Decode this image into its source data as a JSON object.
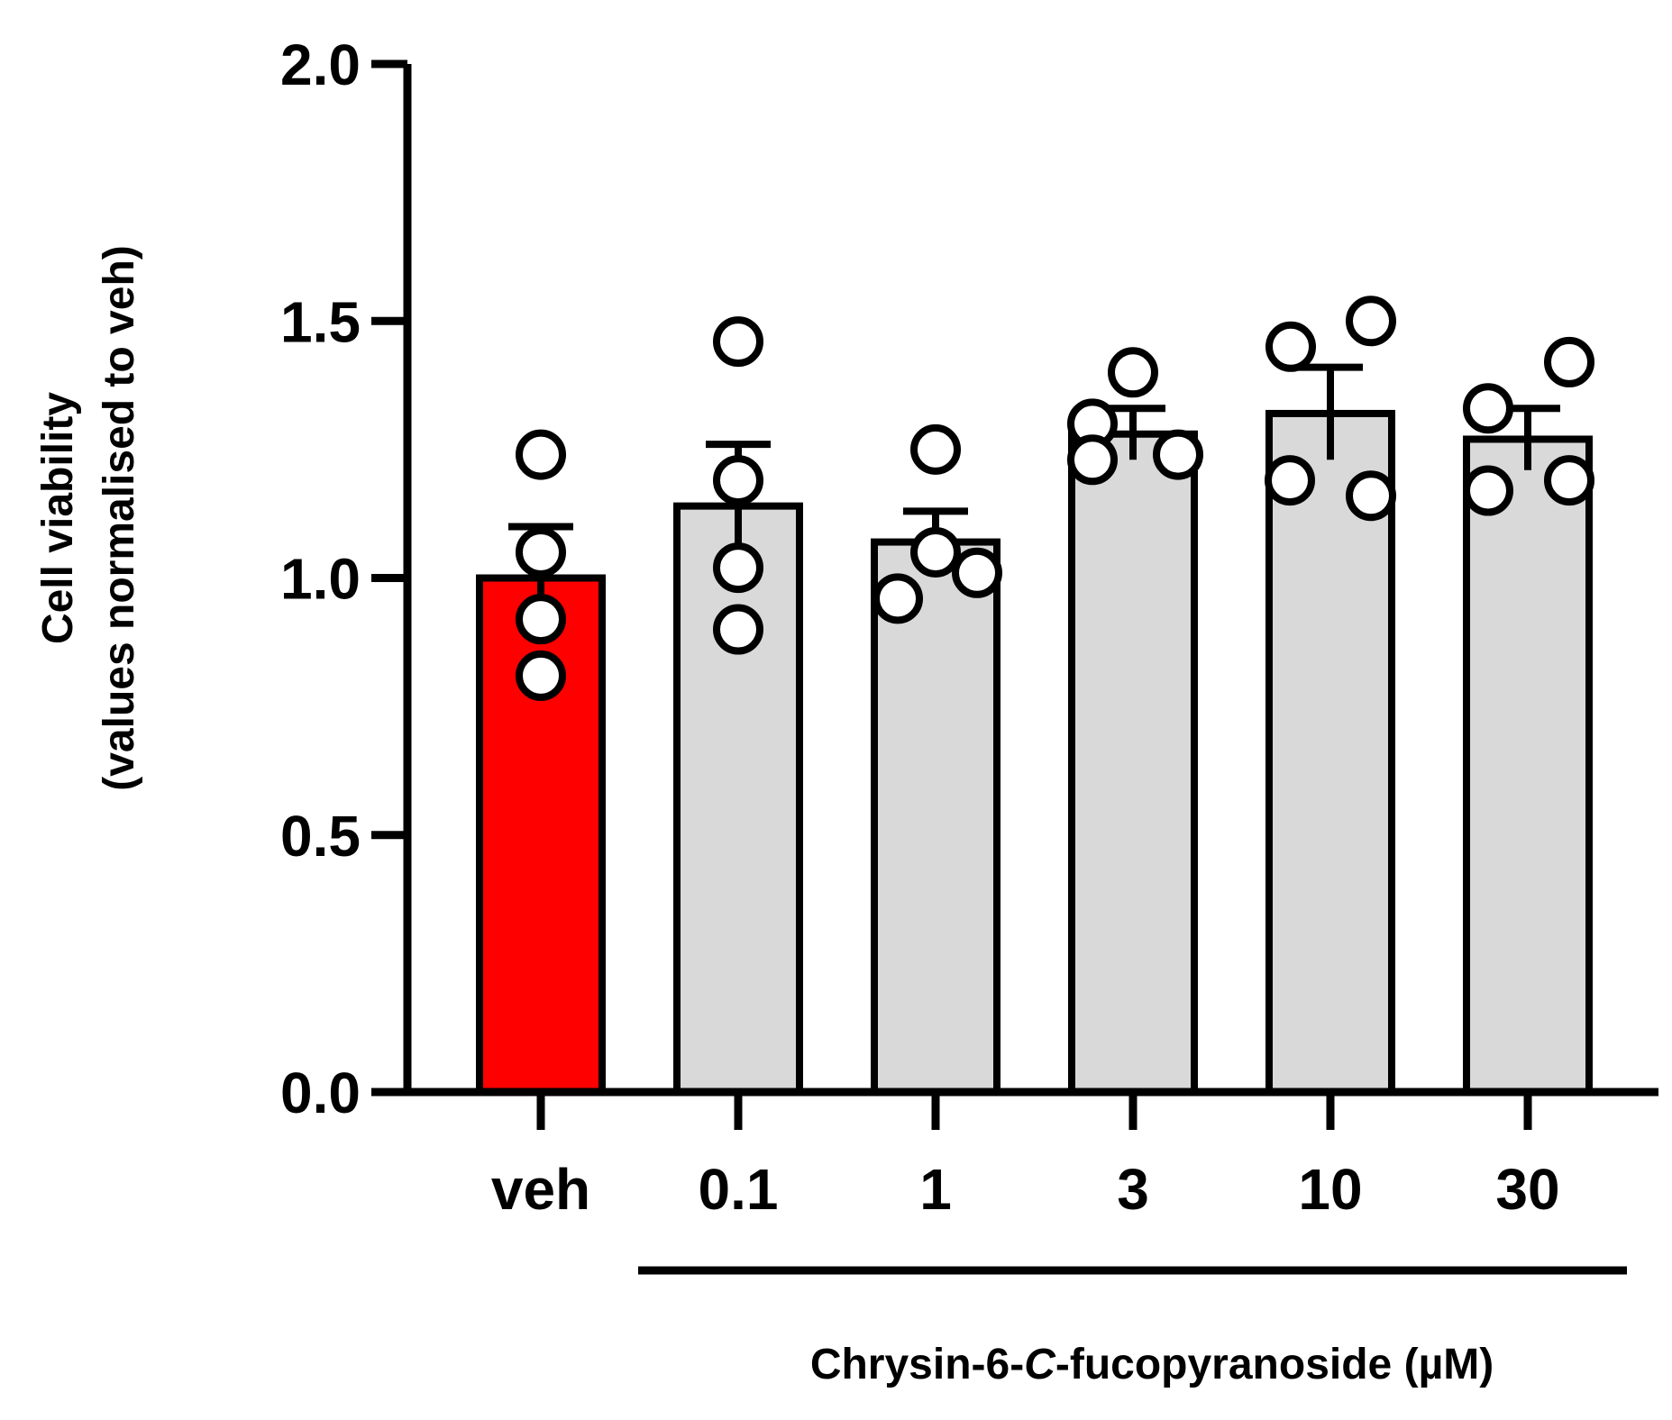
{
  "chart_data": {
    "type": "bar",
    "title": "",
    "ylabel_line1": "Cell viability",
    "ylabel_line2": "(values normalised to veh)",
    "xlabel_prefix": "Chrysin-6-",
    "xlabel_italic": "C",
    "xlabel_suffix": "-fucopyranoside (µM)",
    "ylim": [
      0,
      2.0
    ],
    "yticks": [
      "0.0",
      "0.5",
      "1.0",
      "1.5",
      "2.0"
    ],
    "ytick_values": [
      0,
      0.5,
      1.0,
      1.5,
      2.0
    ],
    "categories": [
      "veh",
      "0.1",
      "1",
      "3",
      "10",
      "30"
    ],
    "values": [
      1.0,
      1.14,
      1.07,
      1.28,
      1.32,
      1.27
    ],
    "errors": [
      0.1,
      0.12,
      0.06,
      0.05,
      0.09,
      0.06
    ],
    "points": [
      [
        1.24,
        1.05,
        0.92,
        0.81
      ],
      [
        1.46,
        1.19,
        1.02,
        0.9
      ],
      [
        1.25,
        1.05,
        1.01,
        0.96
      ],
      [
        1.4,
        1.3,
        1.24,
        1.23
      ],
      [
        1.45,
        1.5,
        1.19,
        1.16
      ],
      [
        1.42,
        1.33,
        1.19,
        1.17
      ]
    ],
    "bar_colors": [
      "#ff0000",
      "#d9d9d9",
      "#d9d9d9",
      "#d9d9d9",
      "#d9d9d9",
      "#d9d9d9"
    ],
    "grid": false,
    "legend": "none"
  }
}
